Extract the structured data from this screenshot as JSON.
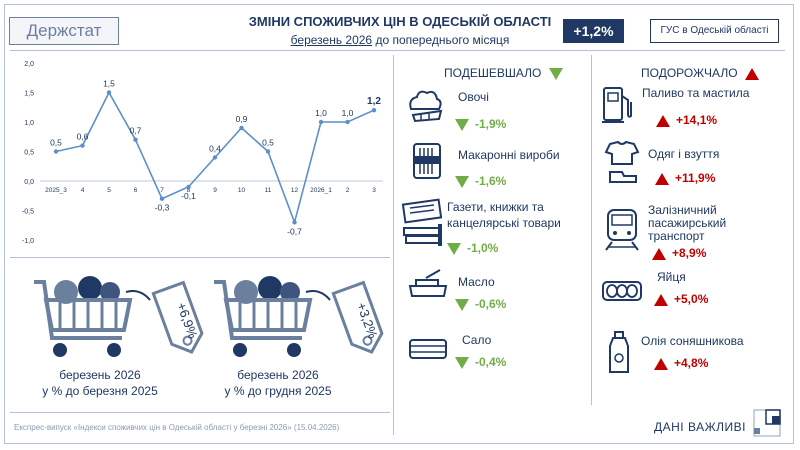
{
  "header": {
    "logo": "Держстат",
    "title": "ЗМІНИ СПОЖИВЧИХ ЦІН В ОДЕСЬКІЙ ОБЛАСТІ",
    "subtitle_underlined": "березень 2026",
    "subtitle_rest": " до попереднього місяця",
    "badge": "+1,2%",
    "agency": "ГУС в Одеській області"
  },
  "chart_data": {
    "type": "line",
    "x": [
      "2025_3",
      "4",
      "5",
      "6",
      "7",
      "8",
      "9",
      "10",
      "11",
      "12",
      "2026_1",
      "2",
      "3"
    ],
    "tick_labels": [
      "2025_3",
      "4",
      "5",
      "6",
      "7",
      "8",
      "9",
      "10",
      "11",
      "12",
      "2026_1",
      "2",
      "3"
    ],
    "values": [
      0.5,
      0.6,
      1.5,
      0.7,
      -0.3,
      -0.1,
      0.4,
      0.9,
      0.5,
      -0.7,
      1.0,
      1.0,
      1.2
    ],
    "data_labels": [
      "0,5",
      "0,6",
      "1,5",
      "0,7",
      "-0,3",
      "-0,1",
      "0,4",
      "0,9",
      "0,5",
      "-0,7",
      "1,0",
      "1,0",
      "1,2"
    ],
    "y_ticks": [
      2.0,
      1.5,
      1.0,
      0.5,
      0.0,
      -0.5,
      -1.0
    ],
    "y_tick_labels": [
      "2,0",
      "1,5",
      "1,0",
      "0,5",
      "0,0",
      "-0,5",
      "-1,0"
    ],
    "ylim": [
      -1.0,
      2.0
    ],
    "color": "#5b8fc9",
    "grid": false
  },
  "cheaper": {
    "heading": "ПОДЕШЕВШАЛО",
    "items": [
      {
        "label": "Овочі",
        "value": "-1,9%",
        "icon": "vegetables-icon"
      },
      {
        "label": "Макаронні вироби",
        "value": "-1,6%",
        "icon": "pasta-icon"
      },
      {
        "label_line1": "Газети, книжки та",
        "label_line2": "канцелярські товари",
        "value": "-1,0%",
        "icon": "newspaper-icon"
      },
      {
        "label": "Масло",
        "value": "-0,6%",
        "icon": "butter-icon"
      },
      {
        "label": "Сало",
        "value": "-0,4%",
        "icon": "lard-icon"
      }
    ]
  },
  "pricier": {
    "heading": "ПОДОРОЖЧАЛО",
    "items": [
      {
        "label": "Паливо та мастила",
        "value": "+14,1%",
        "icon": "fuel-pump-icon"
      },
      {
        "label": "Одяг і взуття",
        "value": "+11,9%",
        "icon": "clothing-icon"
      },
      {
        "label_line1": "Залізничний",
        "label_line2": "пасажирський",
        "label_line3": "транспорт",
        "value": "+8,9%",
        "icon": "train-icon"
      },
      {
        "label": "Яйця",
        "value": "+5,0%",
        "icon": "eggs-icon"
      },
      {
        "label": "Олія соняшникова",
        "value": "+4,8%",
        "icon": "oil-bottle-icon"
      }
    ]
  },
  "carts": [
    {
      "tag": "+6,9%",
      "line1": "березень 2026",
      "line2": "у % до березня 2025"
    },
    {
      "tag": "+3,2%",
      "line1": "березень 2026",
      "line2": "у % до грудня 2025"
    }
  ],
  "footer": {
    "text": "Експрес-випуск «Індекси споживчих цін в Одеській області у березні 2026» (15.04.2026)",
    "brand": "ДАНІ ВАЖЛИВІ"
  },
  "colors": {
    "navy": "#1f3864",
    "down": "#70ad47",
    "up": "#c00000",
    "line": "#5b8fc9"
  }
}
